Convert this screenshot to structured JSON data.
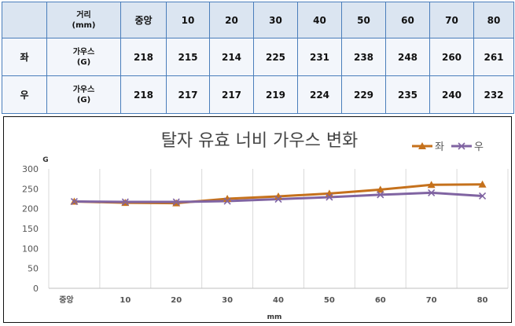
{
  "table": {
    "header_label_1": "거리",
    "header_label_2": "(mm)",
    "columns": [
      "중앙",
      "10",
      "20",
      "30",
      "40",
      "50",
      "60",
      "70",
      "80"
    ],
    "rows": [
      {
        "side": "좌",
        "unit_1": "가우스",
        "unit_2": "(G)",
        "values": [
          "218",
          "215",
          "214",
          "225",
          "231",
          "238",
          "248",
          "260",
          "261"
        ]
      },
      {
        "side": "우",
        "unit_1": "가우스",
        "unit_2": "(G)",
        "values": [
          "218",
          "217",
          "217",
          "219",
          "224",
          "229",
          "235",
          "240",
          "232"
        ]
      }
    ]
  },
  "chart_data": {
    "type": "line",
    "title": "탈자 유효 너비 가우스 변화",
    "xlabel": "mm",
    "ylabel": "G",
    "categories": [
      "중앙",
      "10",
      "20",
      "30",
      "40",
      "50",
      "60",
      "70",
      "80"
    ],
    "ylim": [
      0,
      300
    ],
    "yticks": [
      "0",
      "50",
      "100",
      "150",
      "200",
      "250",
      "300"
    ],
    "grid": "vertical",
    "legend": "top-right",
    "series": [
      {
        "name": "좌",
        "values": [
          218,
          215,
          214,
          225,
          231,
          238,
          248,
          260,
          261
        ],
        "color": "#c5711c",
        "marker": "triangle"
      },
      {
        "name": "우",
        "values": [
          218,
          217,
          217,
          219,
          224,
          229,
          235,
          240,
          232
        ],
        "color": "#8064a2",
        "marker": "x"
      }
    ]
  }
}
